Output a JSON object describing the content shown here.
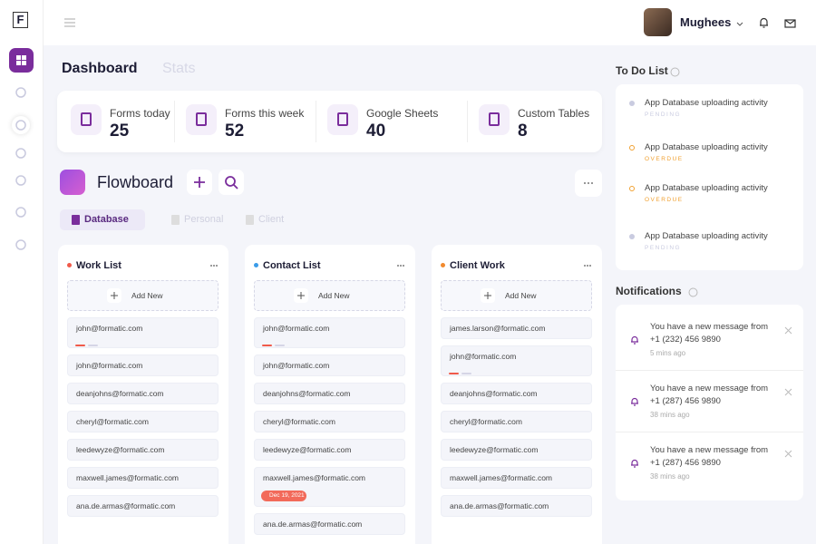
{
  "logo": "F",
  "user": {
    "name": "Mughees"
  },
  "tabs": [
    "Dashboard",
    "Stats"
  ],
  "stats": [
    {
      "label": "Forms today",
      "value": 25
    },
    {
      "label": "Forms this week",
      "value": 52
    },
    {
      "label": "Google Sheets",
      "value": 40
    },
    {
      "label": "Custom Tables",
      "value": 8
    }
  ],
  "board": {
    "title": "Flowboard",
    "filters": [
      "Database",
      "Personal",
      "Client"
    ]
  },
  "lists": [
    {
      "title": "Work List",
      "color": "#f05a4a",
      "add": "Add New",
      "cards": [
        {
          "email": "john@formatic.com",
          "tags": [
            "#f05a4a",
            "#d5d5e6"
          ]
        },
        {
          "email": "john@formatic.com"
        },
        {
          "email": "deanjohns@formatic.com"
        },
        {
          "email": "cheryl@formatic.com"
        },
        {
          "email": "leedewyze@formatic.com"
        },
        {
          "email": "maxwell.james@formatic.com"
        },
        {
          "email": "ana.de.armas@formatic.com"
        }
      ]
    },
    {
      "title": "Contact List",
      "color": "#3a9be8",
      "add": "Add New",
      "cards": [
        {
          "email": "john@formatic.com",
          "tags": [
            "#f05a4a",
            "#d5d5e6"
          ]
        },
        {
          "email": "john@formatic.com"
        },
        {
          "email": "deanjohns@formatic.com"
        },
        {
          "email": "cheryl@formatic.com"
        },
        {
          "email": "leedewyze@formatic.com"
        },
        {
          "email": "maxwell.james@formatic.com",
          "date": "Dec 19, 2021"
        },
        {
          "email": "ana.de.armas@formatic.com"
        }
      ]
    },
    {
      "title": "Client Work",
      "color": "#f28a2e",
      "add": "Add New",
      "cards": [
        {
          "email": "james.larson@formatic.com"
        },
        {
          "email": "john@formatic.com",
          "tags": [
            "#f05a4a",
            "#d5d5e6"
          ]
        },
        {
          "email": "deanjohns@formatic.com"
        },
        {
          "email": "cheryl@formatic.com"
        },
        {
          "email": "leedewyze@formatic.com"
        },
        {
          "email": "maxwell.james@formatic.com"
        },
        {
          "email": "ana.de.armas@formatic.com"
        }
      ]
    }
  ],
  "todo": {
    "title": "To Do List",
    "items": [
      {
        "text": "App Database uploading activity",
        "status": "PENDING",
        "color": "#c9cbe0"
      },
      {
        "text": "App Database uploading activity",
        "status": "OVERDUE",
        "color": "#f0a030"
      },
      {
        "text": "App Database uploading activity",
        "status": "OVERDUE",
        "color": "#f0a030"
      },
      {
        "text": "App Database uploading activity",
        "status": "PENDING",
        "color": "#c9cbe0"
      }
    ]
  },
  "notifications": {
    "title": "Notifications",
    "items": [
      {
        "text": "You have a new message from",
        "phone": "+1 (232) 456 9890",
        "time": "5 mins ago"
      },
      {
        "text": "You have a new message from",
        "phone": "+1 (287) 456 9890",
        "time": "38 mins ago"
      },
      {
        "text": "You have a new message from",
        "phone": "+1 (287) 456 9890",
        "time": "38 mins ago"
      }
    ]
  }
}
